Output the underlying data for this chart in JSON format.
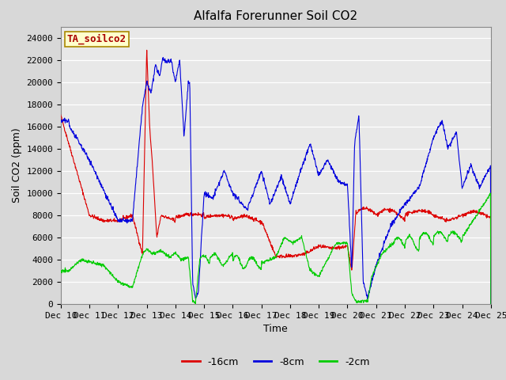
{
  "title": "Alfalfa Forerunner Soil CO2",
  "xlabel": "Time",
  "ylabel": "Soil CO2 (ppm)",
  "ylim": [
    0,
    25000
  ],
  "yticks": [
    0,
    2000,
    4000,
    6000,
    8000,
    10000,
    12000,
    14000,
    16000,
    18000,
    20000,
    22000,
    24000
  ],
  "x_labels": [
    "Dec 10",
    "Dec 11",
    "Dec 12",
    "Dec 13",
    "Dec 14",
    "Dec 15",
    "Dec 16",
    "Dec 17",
    "Dec 18",
    "Dec 19",
    "Dec 20",
    "Dec 21",
    "Dec 22",
    "Dec 23",
    "Dec 24",
    "Dec 25"
  ],
  "annotation_text": "TA_soilco2",
  "annotation_color": "#aa0000",
  "annotation_bg": "#ffffcc",
  "annotation_border": "#aa8800",
  "line_colors": {
    "red": "#dd0000",
    "blue": "#0000dd",
    "green": "#00cc00"
  },
  "legend_labels": [
    "-16cm",
    "-8cm",
    "-2cm"
  ],
  "background_color": "#d8d8d8",
  "plot_bg": "#e8e8e8",
  "grid_color": "#ffffff",
  "title_fontsize": 11,
  "label_fontsize": 9,
  "tick_fontsize": 8
}
